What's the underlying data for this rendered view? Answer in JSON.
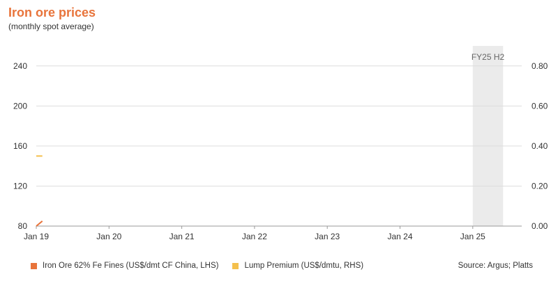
{
  "header": {
    "title": "Iron ore prices",
    "subtitle": "(monthly spot average)"
  },
  "colors": {
    "title": "#e8743b",
    "iron_ore": "#e8743b",
    "lump": "#f4c04d",
    "band": "#ebebeb",
    "grid": "#dddddd"
  },
  "chart_data": {
    "type": "line",
    "x_ticks": [
      "Jan 19",
      "Jan 20",
      "Jan 21",
      "Jan 22",
      "Jan 23",
      "Jan 24",
      "Jan 25"
    ],
    "y_left": {
      "ticks": [
        "80",
        "120",
        "160",
        "200",
        "240"
      ],
      "ylim": [
        80,
        260
      ]
    },
    "y_right": {
      "ticks": [
        "0.00",
        "0.20",
        "0.40",
        "0.60",
        "0.80"
      ],
      "ylim": [
        0,
        0.9
      ]
    },
    "highlight_band": {
      "label": "FY25 H2",
      "x_start": "Jan 25",
      "x_end": "Jun 25"
    },
    "grid": true,
    "series": [
      {
        "name": "Iron Ore 62% Fe Fines (US$/dmt CF China, LHS)",
        "axis": "left",
        "points": [
          {
            "x": "Jan 19",
            "y": 80
          },
          {
            "x": "Feb 19",
            "y": 85
          }
        ]
      },
      {
        "name": "Lump Premium (US$/dmtu, RHS)",
        "axis": "right",
        "points": [
          {
            "x": "Jan 19",
            "y": 0.35
          },
          {
            "x": "Feb 19",
            "y": 0.35
          }
        ]
      }
    ]
  },
  "legend": {
    "items": [
      {
        "label": "Iron Ore 62% Fe Fines (US$/dmt CF China, LHS)"
      },
      {
        "label": "Lump Premium (US$/dmtu, RHS)"
      }
    ]
  },
  "source": "Source: Argus; Platts"
}
